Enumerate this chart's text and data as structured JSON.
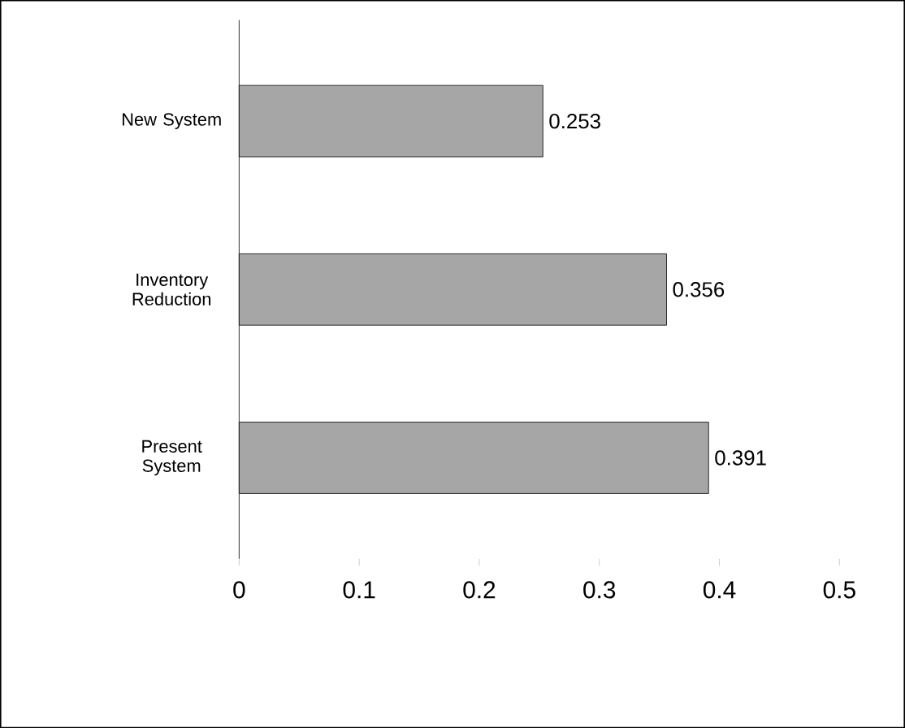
{
  "chart_data": {
    "type": "bar",
    "orientation": "horizontal",
    "categories": [
      "New System",
      "Inventory Reduction",
      "Present System"
    ],
    "values": [
      0.253,
      0.356,
      0.391
    ],
    "color": "#a6a6a6",
    "xlim": [
      0,
      0.5
    ],
    "xticks": [
      0,
      0.1,
      0.2,
      0.3,
      0.4,
      0.5
    ],
    "data_labels": true
  }
}
